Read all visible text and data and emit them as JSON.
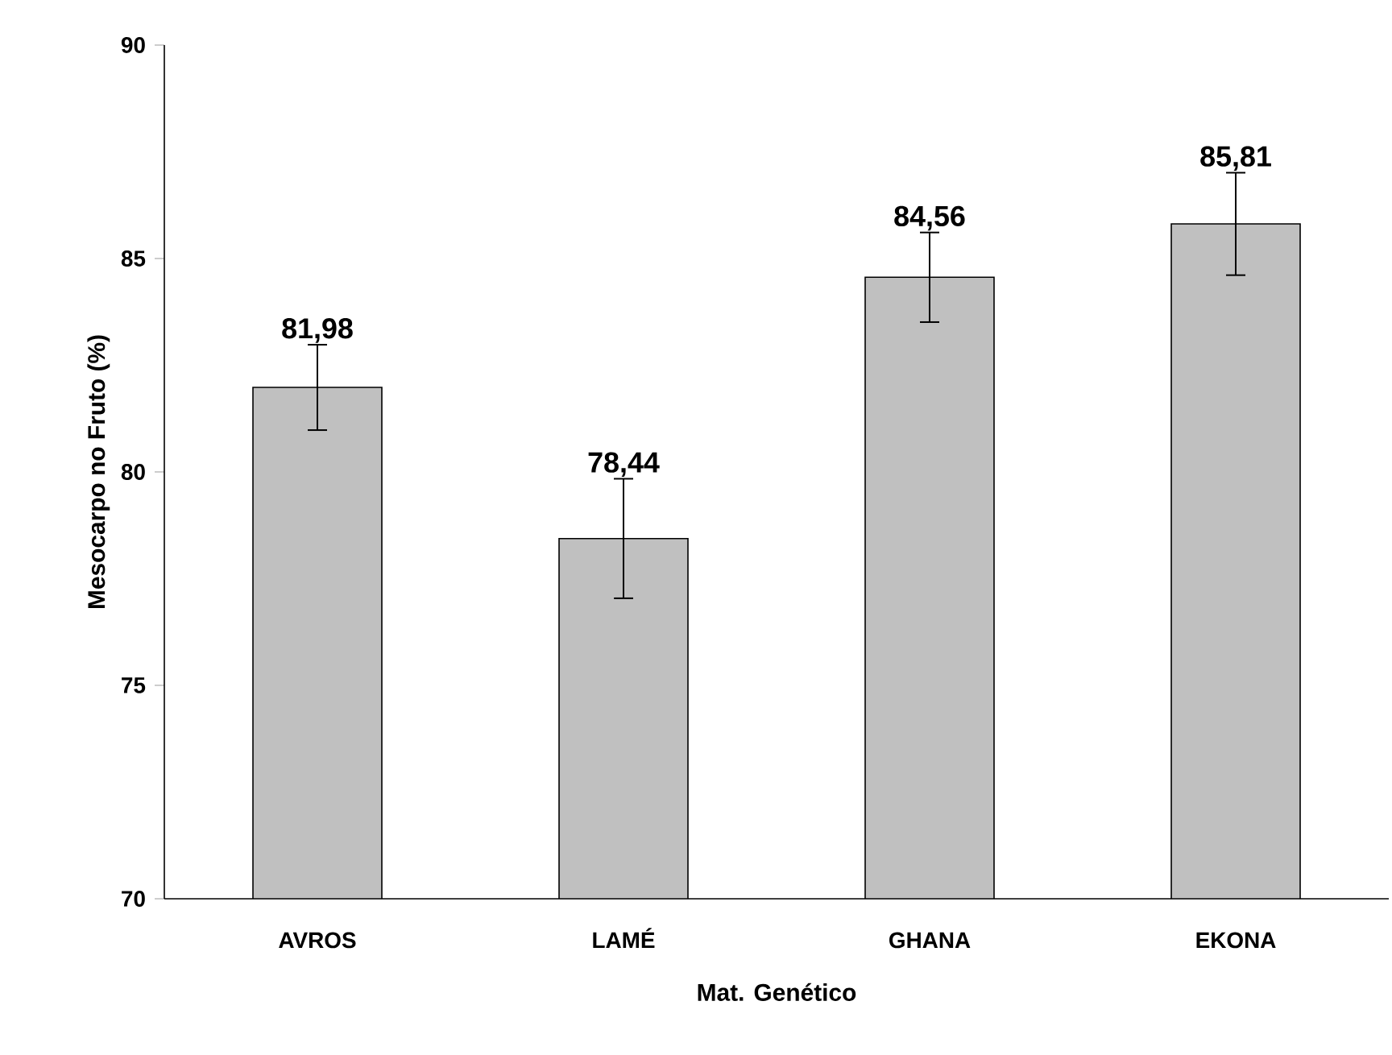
{
  "chart_data": {
    "type": "bar",
    "xlabel": "Mat. Genético",
    "ylabel": "Mesocarpo no Fruto (%)",
    "categories": [
      "AVROS",
      "LAMÉ",
      "GHANA",
      "EKONA"
    ],
    "values": [
      81.98,
      78.44,
      84.56,
      85.81
    ],
    "errors": [
      1.0,
      1.4,
      1.05,
      1.2
    ],
    "value_labels": [
      "81,98",
      "78,44",
      "84,56",
      "85,81"
    ],
    "color": "#c0c0c0",
    "ylim": [
      70,
      90
    ],
    "yticks": [
      70,
      75,
      80,
      85,
      90
    ]
  }
}
